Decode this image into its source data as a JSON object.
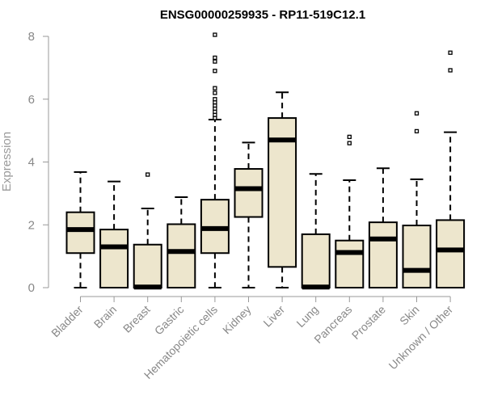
{
  "chart_data": {
    "type": "boxplot",
    "title": "ENSG00000259935 - RP11-519C12.1",
    "xlabel": "",
    "ylabel": "Expression",
    "ylim": [
      0,
      8
    ],
    "yticks": [
      0,
      2,
      4,
      6,
      8
    ],
    "box_fill": "#ede6cd",
    "categories": [
      "Bladder",
      "Brain",
      "Breast",
      "Gastric",
      "Hematopoietic cells",
      "Kidney",
      "Liver",
      "Lung",
      "Pancreas",
      "Prostate",
      "Skin",
      "Unknown / Other"
    ],
    "boxes": [
      {
        "whisker_low": 0,
        "q1": 1.1,
        "median": 1.85,
        "q3": 2.4,
        "whisker_high": 3.68,
        "outliers": []
      },
      {
        "whisker_low": 0,
        "q1": 0,
        "median": 1.3,
        "q3": 1.85,
        "whisker_high": 3.38,
        "outliers": []
      },
      {
        "whisker_low": 0,
        "q1": 0,
        "median": 0.02,
        "q3": 1.37,
        "whisker_high": 2.52,
        "outliers": [
          3.6
        ]
      },
      {
        "whisker_low": 0,
        "q1": 0,
        "median": 1.15,
        "q3": 2.02,
        "whisker_high": 2.88,
        "outliers": []
      },
      {
        "whisker_low": 0,
        "q1": 1.1,
        "median": 1.88,
        "q3": 2.8,
        "whisker_high": 5.35,
        "outliers": [
          5.4,
          5.5,
          5.6,
          5.7,
          5.8,
          5.9,
          6.0,
          6.2,
          6.35,
          6.9,
          7.2,
          7.32,
          8.05
        ]
      },
      {
        "whisker_low": 0,
        "q1": 2.25,
        "median": 3.15,
        "q3": 3.78,
        "whisker_high": 4.62,
        "outliers": []
      },
      {
        "whisker_low": 0,
        "q1": 0.66,
        "median": 4.7,
        "q3": 5.4,
        "whisker_high": 6.22,
        "outliers": []
      },
      {
        "whisker_low": 0,
        "q1": 0,
        "median": 0.02,
        "q3": 1.7,
        "whisker_high": 3.62,
        "outliers": []
      },
      {
        "whisker_low": 0,
        "q1": 0,
        "median": 1.12,
        "q3": 1.5,
        "whisker_high": 3.42,
        "outliers": [
          4.6,
          4.8
        ]
      },
      {
        "whisker_low": 0,
        "q1": 0,
        "median": 1.55,
        "q3": 2.08,
        "whisker_high": 3.8,
        "outliers": []
      },
      {
        "whisker_low": 0,
        "q1": 0,
        "median": 0.55,
        "q3": 1.98,
        "whisker_high": 3.45,
        "outliers": [
          4.98,
          5.55
        ]
      },
      {
        "whisker_low": 0,
        "q1": 0,
        "median": 1.2,
        "q3": 2.15,
        "whisker_high": 4.95,
        "outliers": [
          6.92,
          7.48
        ]
      }
    ]
  }
}
